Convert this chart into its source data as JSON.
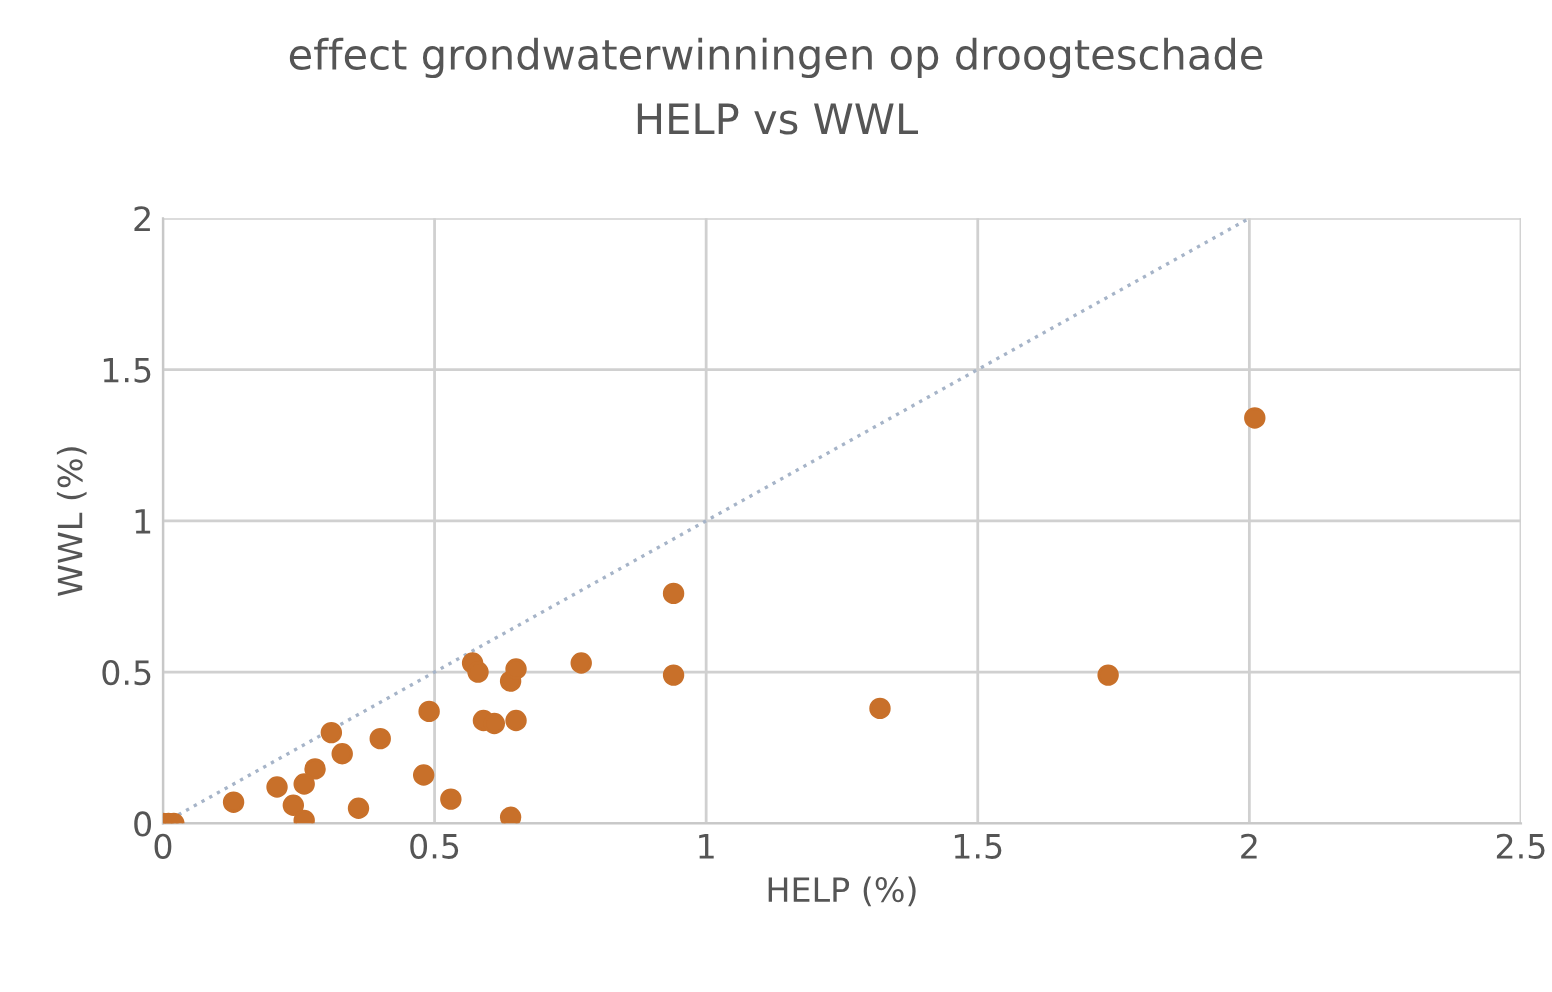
{
  "chart_data": {
    "type": "scatter",
    "title": "effect grondwaterwinningen op droogteschade",
    "subtitle": "HELP vs WWL",
    "xlabel": "HELP (%)",
    "ylabel": "WWL (%)",
    "xlim": [
      0,
      2.5
    ],
    "xticks": [
      0,
      0.5,
      1,
      1.5,
      2,
      2.5
    ],
    "ylim": [
      0,
      2
    ],
    "yticks": [
      0,
      0.5,
      1,
      1.5,
      2
    ],
    "grid": true,
    "legend": false,
    "marker": "circle",
    "series": [
      {
        "color": "#c8702a",
        "x": [
          0,
          0.01,
          0.02,
          0.13,
          0.21,
          0.28,
          0.26,
          0.24,
          0.26,
          0.31,
          0.33,
          0.36,
          0.4,
          0.49,
          0.48,
          0.53,
          0.57,
          0.58,
          0.59,
          0.61,
          0.65,
          0.64,
          0.65,
          0.64,
          0.77,
          0.94,
          0.94,
          1.32,
          1.74,
          2.01
        ],
        "values": [
          0,
          0,
          0,
          0.07,
          0.12,
          0.18,
          0.13,
          0.06,
          0.01,
          0.3,
          0.23,
          0.05,
          0.28,
          0.37,
          0.16,
          0.08,
          0.53,
          0.5,
          0.34,
          0.33,
          0.34,
          0.47,
          0.51,
          0.02,
          0.53,
          0.76,
          0.49,
          0.38,
          0.49,
          1.34
        ]
      },
      {
        "type": "line",
        "color": "#a6b4c8",
        "line_style": "dotted",
        "marker": "none",
        "x": [
          0,
          2
        ],
        "values": [
          0,
          2
        ]
      }
    ]
  }
}
